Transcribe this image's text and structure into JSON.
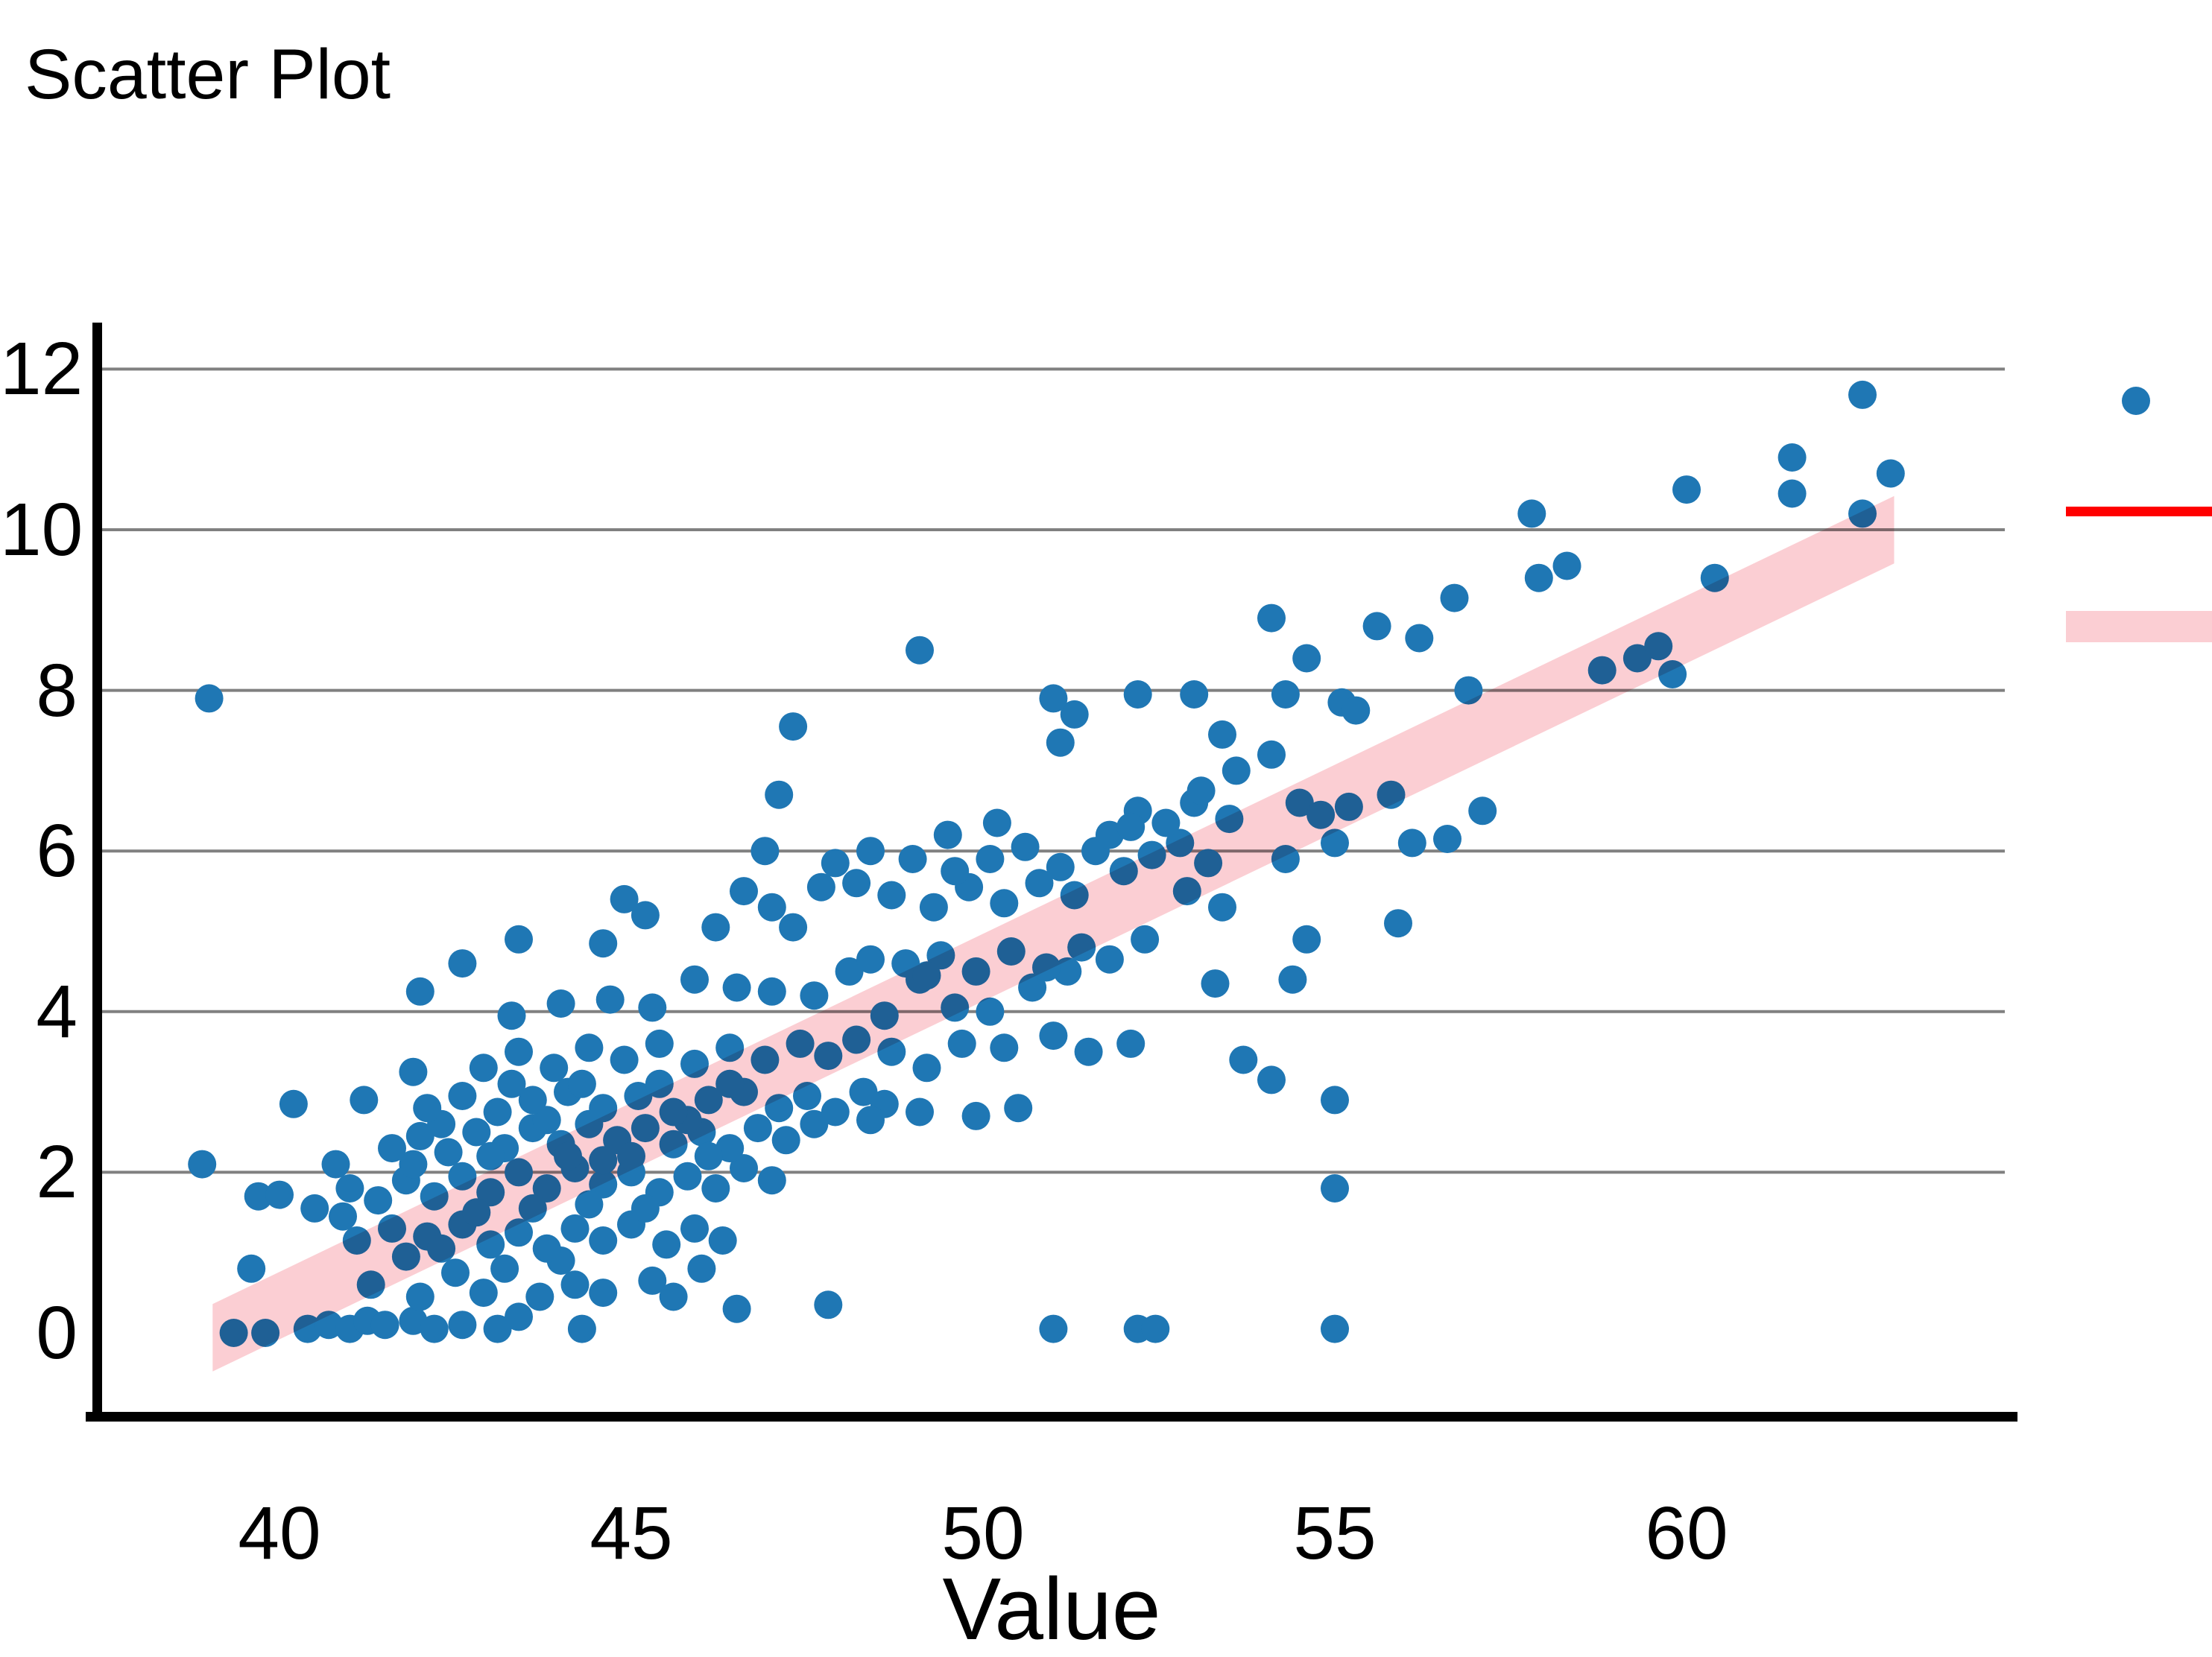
{
  "chart": {
    "title": "Scatter Plot",
    "xlabel": "Value"
  },
  "colors": {
    "point": "#1f77b4",
    "trend_line": "#ff0000",
    "band": "#fbced3",
    "gridline": "#808080",
    "axis": "#000000",
    "background": "#ffffff"
  },
  "chart_data": {
    "type": "scatter",
    "title": "Scatter Plot",
    "xlabel": "Value",
    "ylabel": "",
    "x_ticks": [
      40,
      45,
      50,
      55,
      60
    ],
    "y_ticks": [
      0,
      2,
      4,
      6,
      8,
      10,
      12
    ],
    "xlim": [
      37.4,
      64.7
    ],
    "ylim": [
      -1.05,
      12.6
    ],
    "grid": "horizontal-only-no-zero-line",
    "legend": {
      "position": "outside-right-clipped",
      "entries": [
        {
          "symbol": "scatter-point-marker",
          "color": "#1f77b4"
        },
        {
          "symbol": "trend-line-marker",
          "color": "#ff0000"
        },
        {
          "symbol": "confidence-band-marker",
          "color": "#fbced3"
        }
      ]
    },
    "trend_band": {
      "x_start": 39.05,
      "y_center_start": -0.06,
      "x_end": 62.95,
      "y_center_end": 10.0,
      "half_width": 0.42,
      "color": "#fbced3"
    },
    "points": [
      [
        38.9,
        2.1
      ],
      [
        39.0,
        7.9
      ],
      [
        39.35,
        0.0
      ],
      [
        39.8,
        0.0
      ],
      [
        39.6,
        0.8
      ],
      [
        39.7,
        1.7
      ],
      [
        40.0,
        1.72
      ],
      [
        40.2,
        2.85
      ],
      [
        40.5,
        1.55
      ],
      [
        40.4,
        0.05
      ],
      [
        40.7,
        0.1
      ],
      [
        41.0,
        0.05
      ],
      [
        41.25,
        0.15
      ],
      [
        41.2,
        2.9
      ],
      [
        40.8,
        2.1
      ],
      [
        41.5,
        0.1
      ],
      [
        41.9,
        0.15
      ],
      [
        42.2,
        0.05
      ],
      [
        42.6,
        0.1
      ],
      [
        43.1,
        0.05
      ],
      [
        43.4,
        0.2
      ],
      [
        44.3,
        0.05
      ],
      [
        42.0,
        0.45
      ],
      [
        42.9,
        0.5
      ],
      [
        43.7,
        0.45
      ],
      [
        44.2,
        0.6
      ],
      [
        44.6,
        0.5
      ],
      [
        41.3,
        0.6
      ],
      [
        45.3,
        0.65
      ],
      [
        45.6,
        0.45
      ],
      [
        46.5,
        0.3
      ],
      [
        46.0,
        0.8
      ],
      [
        44.0,
        0.9
      ],
      [
        43.2,
        0.8
      ],
      [
        42.5,
        0.75
      ],
      [
        41.8,
        0.95
      ],
      [
        41.1,
        1.15
      ],
      [
        41.6,
        1.3
      ],
      [
        42.1,
        1.2
      ],
      [
        42.6,
        1.35
      ],
      [
        43.0,
        1.1
      ],
      [
        43.4,
        1.25
      ],
      [
        43.8,
        1.05
      ],
      [
        44.2,
        1.3
      ],
      [
        44.6,
        1.15
      ],
      [
        45.0,
        1.35
      ],
      [
        45.5,
        1.1
      ],
      [
        45.9,
        1.3
      ],
      [
        46.3,
        1.15
      ],
      [
        42.3,
        1.05
      ],
      [
        40.9,
        1.45
      ],
      [
        41.0,
        1.8
      ],
      [
        41.4,
        1.65
      ],
      [
        41.8,
        1.9
      ],
      [
        42.2,
        1.7
      ],
      [
        42.6,
        1.95
      ],
      [
        43.0,
        1.75
      ],
      [
        43.4,
        2.0
      ],
      [
        43.8,
        1.8
      ],
      [
        44.2,
        2.05
      ],
      [
        44.6,
        1.85
      ],
      [
        45.0,
        2.0
      ],
      [
        45.4,
        1.75
      ],
      [
        45.8,
        1.95
      ],
      [
        46.2,
        1.8
      ],
      [
        46.6,
        2.05
      ],
      [
        47.0,
        1.9
      ],
      [
        44.4,
        1.6
      ],
      [
        43.6,
        1.55
      ],
      [
        42.8,
        1.5
      ],
      [
        41.9,
        2.1
      ],
      [
        45.2,
        1.55
      ],
      [
        41.6,
        2.3
      ],
      [
        42.0,
        2.45
      ],
      [
        42.4,
        2.25
      ],
      [
        42.8,
        2.5
      ],
      [
        43.2,
        2.3
      ],
      [
        43.6,
        2.55
      ],
      [
        44.0,
        2.35
      ],
      [
        44.4,
        2.6
      ],
      [
        44.8,
        2.4
      ],
      [
        45.2,
        2.55
      ],
      [
        45.6,
        2.35
      ],
      [
        46.0,
        2.5
      ],
      [
        46.4,
        2.3
      ],
      [
        46.8,
        2.55
      ],
      [
        47.2,
        2.4
      ],
      [
        47.6,
        2.6
      ],
      [
        43.0,
        2.2
      ],
      [
        44.1,
        2.2
      ],
      [
        45.0,
        2.2
      ],
      [
        46.1,
        2.2
      ],
      [
        42.3,
        2.6
      ],
      [
        43.8,
        2.65
      ],
      [
        45.8,
        2.65
      ],
      [
        44.6,
        2.15
      ],
      [
        42.1,
        2.8
      ],
      [
        42.6,
        2.95
      ],
      [
        43.1,
        2.75
      ],
      [
        43.6,
        2.9
      ],
      [
        44.1,
        3.0
      ],
      [
        44.6,
        2.8
      ],
      [
        45.1,
        2.95
      ],
      [
        45.6,
        2.75
      ],
      [
        46.1,
        2.9
      ],
      [
        46.6,
        3.0
      ],
      [
        47.1,
        2.8
      ],
      [
        47.5,
        2.95
      ],
      [
        47.9,
        2.75
      ],
      [
        48.3,
        3.0
      ],
      [
        44.3,
        3.1
      ],
      [
        45.4,
        3.1
      ],
      [
        46.4,
        3.1
      ],
      [
        43.3,
        3.1
      ],
      [
        48.6,
        2.85
      ],
      [
        49.1,
        2.75
      ],
      [
        49.9,
        2.7
      ],
      [
        50.5,
        2.8
      ],
      [
        48.4,
        2.65
      ],
      [
        42.9,
        3.3
      ],
      [
        43.4,
        3.5
      ],
      [
        43.9,
        3.3
      ],
      [
        44.4,
        3.55
      ],
      [
        44.9,
        3.4
      ],
      [
        45.4,
        3.6
      ],
      [
        45.9,
        3.35
      ],
      [
        46.4,
        3.55
      ],
      [
        46.9,
        3.4
      ],
      [
        47.4,
        3.6
      ],
      [
        47.8,
        3.45
      ],
      [
        48.2,
        3.65
      ],
      [
        48.7,
        3.5
      ],
      [
        49.2,
        3.3
      ],
      [
        49.7,
        3.6
      ],
      [
        50.3,
        3.55
      ],
      [
        51.0,
        3.7
      ],
      [
        51.5,
        3.5
      ],
      [
        52.1,
        3.6
      ],
      [
        41.9,
        3.25
      ],
      [
        53.7,
        3.4
      ],
      [
        54.1,
        3.15
      ],
      [
        55.0,
        2.9
      ],
      [
        43.3,
        3.95
      ],
      [
        44.0,
        4.1
      ],
      [
        44.7,
        4.15
      ],
      [
        45.3,
        4.05
      ],
      [
        45.9,
        4.4
      ],
      [
        46.5,
        4.3
      ],
      [
        47.0,
        4.25
      ],
      [
        47.6,
        4.2
      ],
      [
        48.1,
        4.5
      ],
      [
        48.6,
        3.95
      ],
      [
        49.1,
        4.4
      ],
      [
        49.6,
        4.05
      ],
      [
        50.1,
        4.0
      ],
      [
        50.7,
        4.3
      ],
      [
        51.2,
        4.5
      ],
      [
        42.0,
        4.25
      ],
      [
        54.4,
        4.4
      ],
      [
        53.3,
        4.35
      ],
      [
        42.6,
        4.6
      ],
      [
        43.4,
        4.9
      ],
      [
        44.6,
        4.85
      ],
      [
        48.4,
        4.65
      ],
      [
        48.9,
        4.6
      ],
      [
        49.4,
        4.7
      ],
      [
        49.9,
        4.5
      ],
      [
        50.4,
        4.75
      ],
      [
        50.9,
        4.55
      ],
      [
        51.4,
        4.8
      ],
      [
        51.8,
        4.65
      ],
      [
        52.3,
        4.9
      ],
      [
        49.2,
        4.45
      ],
      [
        54.6,
        4.9
      ],
      [
        46.2,
        5.05
      ],
      [
        47.3,
        5.05
      ],
      [
        44.9,
        5.4
      ],
      [
        45.2,
        5.2
      ],
      [
        46.6,
        5.5
      ],
      [
        47.0,
        5.3
      ],
      [
        47.7,
        5.55
      ],
      [
        48.2,
        5.6
      ],
      [
        48.7,
        5.45
      ],
      [
        49.3,
        5.3
      ],
      [
        49.8,
        5.55
      ],
      [
        50.3,
        5.35
      ],
      [
        50.8,
        5.6
      ],
      [
        51.3,
        5.45
      ],
      [
        55.9,
        5.1
      ],
      [
        52.9,
        5.5
      ],
      [
        53.4,
        5.3
      ],
      [
        47.9,
        5.85
      ],
      [
        48.4,
        6.0
      ],
      [
        49.0,
        5.9
      ],
      [
        49.6,
        5.75
      ],
      [
        50.1,
        5.9
      ],
      [
        50.6,
        6.05
      ],
      [
        51.1,
        5.8
      ],
      [
        51.6,
        6.0
      ],
      [
        52.0,
        5.75
      ],
      [
        52.4,
        5.95
      ],
      [
        52.8,
        6.1
      ],
      [
        53.2,
        5.85
      ],
      [
        51.8,
        6.2
      ],
      [
        46.9,
        6.0
      ],
      [
        56.1,
        6.1
      ],
      [
        56.6,
        6.15
      ],
      [
        55.0,
        6.1
      ],
      [
        54.3,
        5.9
      ],
      [
        52.2,
        6.5
      ],
      [
        52.6,
        6.35
      ],
      [
        53.0,
        6.6
      ],
      [
        53.5,
        6.4
      ],
      [
        54.5,
        6.6
      ],
      [
        54.8,
        6.45
      ],
      [
        55.2,
        6.55
      ],
      [
        55.8,
        6.7
      ],
      [
        57.1,
        6.5
      ],
      [
        47.1,
        6.7
      ],
      [
        53.1,
        6.75
      ],
      [
        52.1,
        6.3
      ],
      [
        50.2,
        6.35
      ],
      [
        49.5,
        6.2
      ],
      [
        53.6,
        7.0
      ],
      [
        54.1,
        7.2
      ],
      [
        53.4,
        7.45
      ],
      [
        51.3,
        7.7
      ],
      [
        47.3,
        7.55
      ],
      [
        51.1,
        7.35
      ],
      [
        51.0,
        7.9
      ],
      [
        52.2,
        7.95
      ],
      [
        53.0,
        7.95
      ],
      [
        54.3,
        7.95
      ],
      [
        55.1,
        7.85
      ],
      [
        56.9,
        8.0
      ],
      [
        55.3,
        7.75
      ],
      [
        49.1,
        8.5
      ],
      [
        54.6,
        8.4
      ],
      [
        59.3,
        8.4
      ],
      [
        58.8,
        8.25
      ],
      [
        59.8,
        8.2
      ],
      [
        59.6,
        8.55
      ],
      [
        55.6,
        8.8
      ],
      [
        56.2,
        8.65
      ],
      [
        56.7,
        9.15
      ],
      [
        54.1,
        8.9
      ],
      [
        57.9,
        9.4
      ],
      [
        58.3,
        9.55
      ],
      [
        60.4,
        9.4
      ],
      [
        57.8,
        10.2
      ],
      [
        60.0,
        10.5
      ],
      [
        61.5,
        10.9
      ],
      [
        61.5,
        10.45
      ],
      [
        62.5,
        11.68
      ],
      [
        62.9,
        10.7
      ],
      [
        62.5,
        10.2
      ],
      [
        51.0,
        0.05
      ],
      [
        52.2,
        0.05
      ],
      [
        52.45,
        0.05
      ],
      [
        55.0,
        0.05
      ],
      [
        55.0,
        1.8
      ],
      [
        47.8,
        0.35
      ]
    ]
  }
}
